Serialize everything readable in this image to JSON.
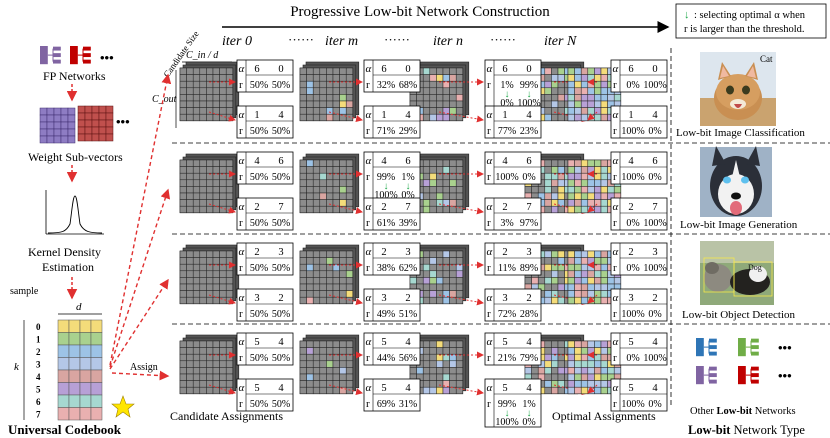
{
  "title": "Progressive Low-bit Network Construction",
  "legend_note": {
    "line1": ": selecting optimal α when",
    "line2": "r is larger than the threshold."
  },
  "iterations": [
    "iter 0",
    "······",
    "iter m",
    "······",
    "iter n",
    "······",
    "iter N"
  ],
  "left_panel": {
    "fp_networks": "FP Networks",
    "weight_subvectors": "Weight Sub-vectors",
    "kde_line1": "Kernel Density",
    "kde_line2": "Estimation",
    "sample": "sample",
    "dim_d": "d",
    "dim_k": "k",
    "codebook_rows": [
      "0",
      "1",
      "2",
      "3",
      "4",
      "5",
      "6",
      "7"
    ],
    "codebook_label": "Universal  Codebook",
    "assign": "Assign"
  },
  "axis_labels": {
    "candidate_size": "Candidate Size",
    "cin_d": "C_in / d",
    "cout": "C_out"
  },
  "bottom_labels": {
    "candidate": "Candidate Assignments",
    "optimal": "Optimal Assignments",
    "other_networks": "Other Low-bit Networks",
    "network_type": "Low-bit Network Type"
  },
  "tasks": [
    "Low-bit Image Classification",
    "Low-bit Image Generation",
    "Low-bit Object Detection"
  ],
  "image_labels": {
    "cat": "Cat",
    "dog": "Dog"
  },
  "rows": [
    [
      {
        "a": [
          "6",
          "0"
        ],
        "r": [
          "50%",
          "50%"
        ]
      },
      {
        "a": [
          "1",
          "4"
        ],
        "r": [
          "50%",
          "50%"
        ]
      },
      {
        "a": [
          "6",
          "0"
        ],
        "r": [
          "32%",
          "68%"
        ]
      },
      {
        "a": [
          "1",
          "4"
        ],
        "r": [
          "71%",
          "29%"
        ]
      },
      {
        "a": [
          "6",
          "0"
        ],
        "r": [
          "1%",
          "99%"
        ],
        "sel": [
          "0%",
          "100%"
        ]
      },
      {
        "a": [
          "1",
          "4"
        ],
        "r": [
          "77%",
          "23%"
        ]
      },
      {
        "a": [
          "6",
          "0"
        ],
        "r": [
          "0%",
          "100%"
        ]
      },
      {
        "a": [
          "1",
          "4"
        ],
        "r": [
          "100%",
          "0%"
        ]
      }
    ],
    [
      {
        "a": [
          "4",
          "6"
        ],
        "r": [
          "50%",
          "50%"
        ]
      },
      {
        "a": [
          "2",
          "7"
        ],
        "r": [
          "50%",
          "50%"
        ]
      },
      {
        "a": [
          "4",
          "6"
        ],
        "r": [
          "99%",
          "1%"
        ],
        "sel": [
          "100%",
          "0%"
        ]
      },
      {
        "a": [
          "2",
          "7"
        ],
        "r": [
          "61%",
          "39%"
        ]
      },
      {
        "a": [
          "4",
          "6"
        ],
        "r": [
          "100%",
          "0%"
        ]
      },
      {
        "a": [
          "2",
          "7"
        ],
        "r": [
          "3%",
          "97%"
        ]
      },
      {
        "a": [
          "4",
          "6"
        ],
        "r": [
          "100%",
          "0%"
        ]
      },
      {
        "a": [
          "2",
          "7"
        ],
        "r": [
          "0%",
          "100%"
        ]
      }
    ],
    [
      {
        "a": [
          "2",
          "3"
        ],
        "r": [
          "50%",
          "50%"
        ]
      },
      {
        "a": [
          "3",
          "2"
        ],
        "r": [
          "50%",
          "50%"
        ]
      },
      {
        "a": [
          "2",
          "3"
        ],
        "r": [
          "38%",
          "62%"
        ]
      },
      {
        "a": [
          "3",
          "2"
        ],
        "r": [
          "49%",
          "51%"
        ]
      },
      {
        "a": [
          "2",
          "3"
        ],
        "r": [
          "11%",
          "89%"
        ]
      },
      {
        "a": [
          "3",
          "2"
        ],
        "r": [
          "72%",
          "28%"
        ]
      },
      {
        "a": [
          "2",
          "3"
        ],
        "r": [
          "0%",
          "100%"
        ]
      },
      {
        "a": [
          "3",
          "2"
        ],
        "r": [
          "100%",
          "0%"
        ]
      }
    ],
    [
      {
        "a": [
          "5",
          "4"
        ],
        "r": [
          "50%",
          "50%"
        ]
      },
      {
        "a": [
          "5",
          "4"
        ],
        "r": [
          "50%",
          "50%"
        ]
      },
      {
        "a": [
          "5",
          "4"
        ],
        "r": [
          "44%",
          "56%"
        ]
      },
      {
        "a": [
          "5",
          "4"
        ],
        "r": [
          "69%",
          "31%"
        ]
      },
      {
        "a": [
          "5",
          "4"
        ],
        "r": [
          "21%",
          "79%"
        ]
      },
      {
        "a": [
          "5",
          "4"
        ],
        "r": [
          "99%",
          "1%"
        ],
        "sel": [
          "100%",
          "0%"
        ]
      },
      {
        "a": [
          "5",
          "4"
        ],
        "r": [
          "0%",
          "100%"
        ]
      },
      {
        "a": [
          "5",
          "4"
        ],
        "r": [
          "100%",
          "0%"
        ]
      }
    ]
  ],
  "colors": {
    "codebook": [
      "#f4dc7a",
      "#a9d18e",
      "#9dc3e6",
      "#b4c7e7",
      "#d9a5a1",
      "#b7a0d6",
      "#a6d8d0",
      "#e9b0b0"
    ],
    "purple": "#8064a2",
    "red": "#c00000",
    "blue": "#2e75b6",
    "green": "#70ad47",
    "gray": "#8c8c8c",
    "arrow_red": "#e03030",
    "select_green": "#1ea84a"
  }
}
